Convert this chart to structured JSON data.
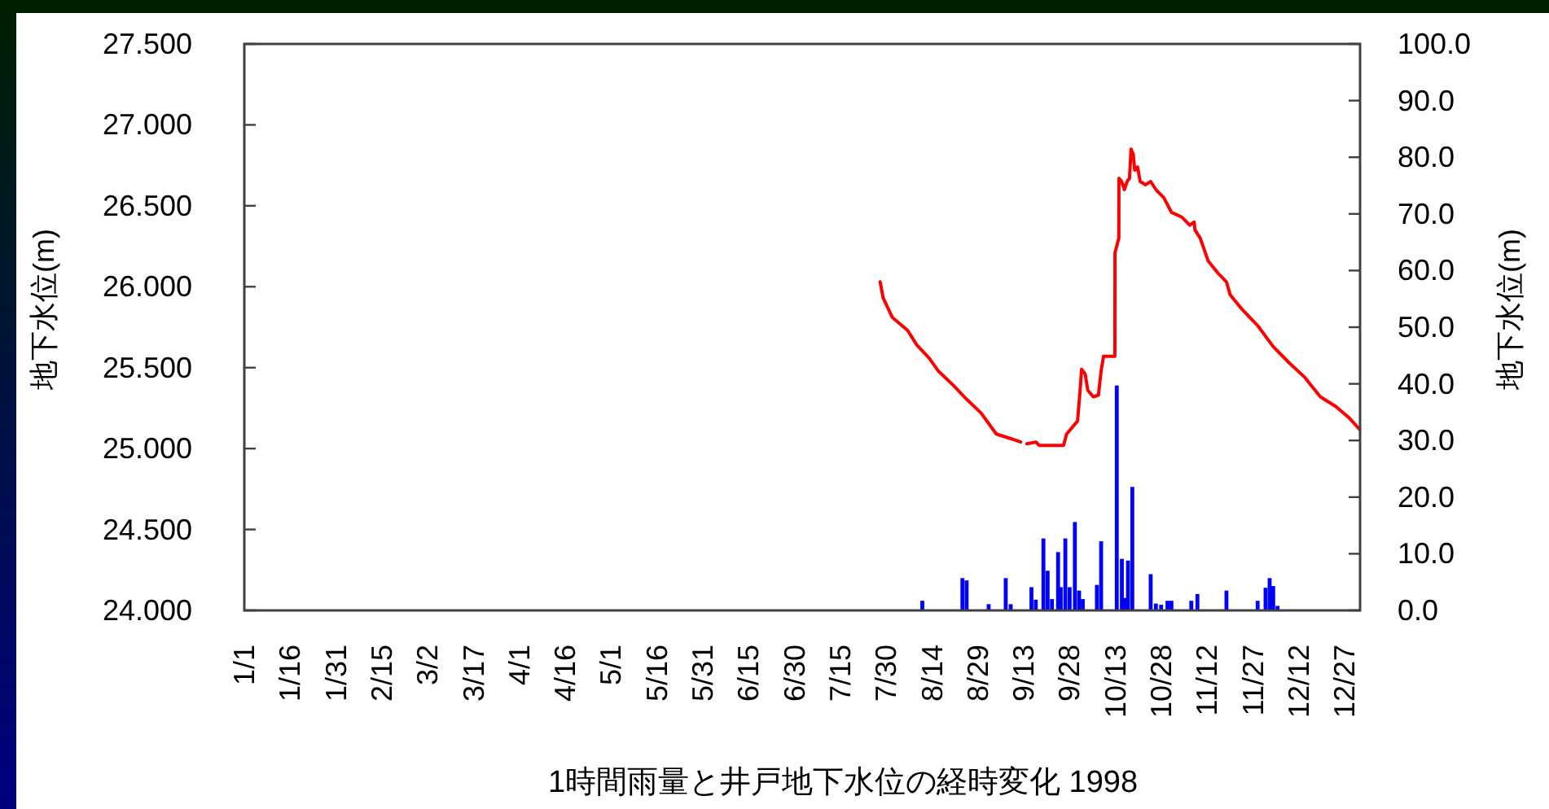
{
  "chart_data": {
    "type": "line",
    "title": "1時間雨量と井戸地下水位の経時変化 1998",
    "ylabel": "地下水位(m)",
    "y2label": "地下水位(m)",
    "xlim": [
      "1998-01-01",
      "1999-01-01"
    ],
    "xticks": [
      {
        "value": "1998-01-01",
        "label": "1/1"
      },
      {
        "value": "1998-01-16",
        "label": "1/16"
      },
      {
        "value": "1998-01-31",
        "label": "1/31"
      },
      {
        "value": "1998-02-15",
        "label": "2/15"
      },
      {
        "value": "1998-03-02",
        "label": "3/2"
      },
      {
        "value": "1998-03-17",
        "label": "3/17"
      },
      {
        "value": "1998-04-01",
        "label": "4/1"
      },
      {
        "value": "1998-04-16",
        "label": "4/16"
      },
      {
        "value": "1998-05-01",
        "label": "5/1"
      },
      {
        "value": "1998-05-16",
        "label": "5/16"
      },
      {
        "value": "1998-05-31",
        "label": "5/31"
      },
      {
        "value": "1998-06-15",
        "label": "6/15"
      },
      {
        "value": "1998-06-30",
        "label": "6/30"
      },
      {
        "value": "1998-07-15",
        "label": "7/15"
      },
      {
        "value": "1998-07-30",
        "label": "7/30"
      },
      {
        "value": "1998-08-14",
        "label": "8/14"
      },
      {
        "value": "1998-08-29",
        "label": "8/29"
      },
      {
        "value": "1998-09-13",
        "label": "9/13"
      },
      {
        "value": "1998-09-28",
        "label": "9/28"
      },
      {
        "value": "1998-10-13",
        "label": "10/13"
      },
      {
        "value": "1998-10-28",
        "label": "10/28"
      },
      {
        "value": "1998-11-12",
        "label": "11/12"
      },
      {
        "value": "1998-11-27",
        "label": "11/27"
      },
      {
        "value": "1998-12-12",
        "label": "12/12"
      },
      {
        "value": "1998-12-27",
        "label": "12/27"
      }
    ],
    "ylim": [
      24,
      27.5
    ],
    "yticks": [
      {
        "value": 24,
        "label": "24.000"
      },
      {
        "value": 24.5,
        "label": "24.500"
      },
      {
        "value": 25,
        "label": "25.000"
      },
      {
        "value": 25.5,
        "label": "25.500"
      },
      {
        "value": 26,
        "label": "26.000"
      },
      {
        "value": 26.5,
        "label": "26.500"
      },
      {
        "value": 27,
        "label": "27.000"
      },
      {
        "value": 27.5,
        "label": "27.500"
      }
    ],
    "y2lim": [
      0,
      100
    ],
    "y2ticks": [
      {
        "value": 0,
        "label": "0.0"
      },
      {
        "value": 10,
        "label": "10.0"
      },
      {
        "value": 20,
        "label": "20.0"
      },
      {
        "value": 30,
        "label": "30.0"
      },
      {
        "value": 40,
        "label": "40.0"
      },
      {
        "value": 50,
        "label": "50.0"
      },
      {
        "value": 60,
        "label": "60.0"
      },
      {
        "value": 70,
        "label": "70.0"
      },
      {
        "value": 80,
        "label": "80.0"
      },
      {
        "value": 90,
        "label": "90.0"
      },
      {
        "value": 100,
        "label": "100.0"
      }
    ],
    "series": [
      {
        "color": "#ff0000",
        "x": [
          "1998-07-28",
          "1998-07-29",
          "1998-08-01",
          "1998-08-06",
          "1998-08-09",
          "1998-08-13",
          "1998-08-16",
          "1998-08-21",
          "1998-08-25",
          "1998-08-30",
          "1998-09-04",
          "1998-09-09",
          "1998-09-12",
          "1998-09-13",
          "1998-09-14",
          "1998-09-17",
          "1998-09-18",
          "1998-09-26",
          "1998-09-27",
          "1998-09-30T14:00",
          "1998-10-01T10:00",
          "1998-10-01T22:00",
          "1998-10-03T02:00",
          "1998-10-03T22:00",
          "1998-10-05T17:00",
          "1998-10-07T10:00",
          "1998-10-08T07:00",
          "1998-10-09T02:00",
          "1998-10-12T19:00",
          "1998-10-12T20:00",
          "1998-10-14T02:00",
          "1998-10-14T03:00",
          "1998-10-15T00:00",
          "1998-10-15T22:00",
          "1998-10-16T19:00",
          "1998-10-17T14:00",
          "1998-10-18T02:00",
          "1998-10-18T19:00",
          "1998-10-19T07:00",
          "1998-10-20T05:00",
          "1998-10-21T02:00",
          "1998-10-22T19:00",
          "1998-10-24T12:00",
          "1998-10-26T05:00",
          "1998-10-28T19:00",
          "1998-10-31T07:00",
          "1998-11-03T17:00",
          "1998-11-06T07:00",
          "1998-11-07T17:00",
          "1998-11-08T00:00",
          "1998-11-09T17:00",
          "1998-11-12T07:00",
          "1998-11-15T17:00",
          "1998-11-18T07:00",
          "1998-11-19T12:00",
          "1998-11-23T10:00",
          "1998-11-28T12:00",
          "1998-12-03T14:00",
          "1998-12-08T19:00",
          "1998-12-13T22:00",
          "1998-12-19T00:00",
          "1998-12-24T02:00",
          "1998-12-28T10:00",
          "1998-12-31T19:00"
        ],
        "values": [
          26.03,
          25.93,
          25.81,
          25.73,
          25.64,
          25.56,
          25.48,
          25.39,
          25.31,
          25.22,
          25.09,
          25.06,
          25.04,
          null,
          25.03,
          25.04,
          25.02,
          25.02,
          25.09,
          25.17,
          25.36,
          25.49,
          25.46,
          25.36,
          25.32,
          25.33,
          25.48,
          25.57,
          25.57,
          26.21,
          26.3,
          26.67,
          26.65,
          26.6,
          26.65,
          26.67,
          26.85,
          26.82,
          26.72,
          26.74,
          26.65,
          26.63,
          26.65,
          26.6,
          26.55,
          26.46,
          26.43,
          26.38,
          26.4,
          26.35,
          26.3,
          26.16,
          26.08,
          26.03,
          25.95,
          25.86,
          25.76,
          25.63,
          25.53,
          25.44,
          25.32,
          25.26,
          25.19,
          25.12
        ]
      },
      {
        "type": "bar",
        "axis": "y2",
        "color": "#0000ff",
        "x": [
          "1998-08-10T19:00",
          "1998-08-23T22:00",
          "1998-08-25T07:00",
          "1998-09-01T12:00",
          "1998-09-07T02:00",
          "1998-09-08T17:00",
          "1998-09-15T12:00",
          "1998-09-16T22:00",
          "1998-09-19T10:00",
          "1998-09-20T19:00",
          "1998-09-22T05:00",
          "1998-09-24T05:00",
          "1998-09-25T02:00",
          "1998-09-26T14:00",
          "1998-09-28T00:00",
          "1998-09-29T17:00",
          "1998-10-01T02:00",
          "1998-10-02T07:00",
          "1998-10-06T22:00",
          "1998-10-08T07:00",
          "1998-10-13T10:00",
          "1998-10-15T02:00",
          "1998-10-16T00:00",
          "1998-10-17T02:00",
          "1998-10-18T12:00",
          "1998-10-24T12:00",
          "1998-10-26T05:00",
          "1998-10-27T22:00",
          "1998-10-30T00:00",
          "1998-10-31T07:00",
          "1998-11-06T19:00",
          "1998-11-08T19:00",
          "1998-11-18T07:00",
          "1998-11-28T12:00",
          "1998-12-01T02:00",
          "1998-12-02T10:00",
          "1998-12-03T14:00",
          "1998-12-05T00:00"
        ],
        "values": [
          1.7,
          5.7,
          5.3,
          1.1,
          5.7,
          1.1,
          4.1,
          1.9,
          12.7,
          7.0,
          2.0,
          10.3,
          4.1,
          12.7,
          4.1,
          15.6,
          3.5,
          2.0,
          4.5,
          12.2,
          39.7,
          9.1,
          2.2,
          8.8,
          21.8,
          6.4,
          1.2,
          1.0,
          1.7,
          1.7,
          1.7,
          2.9,
          3.5,
          1.7,
          4.0,
          5.7,
          4.3,
          0.8
        ]
      }
    ]
  }
}
